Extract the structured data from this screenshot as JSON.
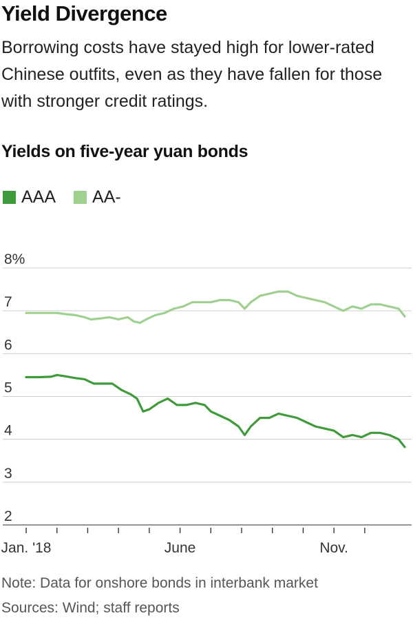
{
  "header": {
    "title": "Yield Divergence",
    "subtitle": "Borrowing costs have stayed high for lower-rated Chinese outfits, even as they have fallen for those with stronger credit ratings."
  },
  "chart_heading": "Yields on five-year yuan bonds",
  "legend": [
    {
      "label": "AAA",
      "color": "#3f9a3b"
    },
    {
      "label": "AA-",
      "color": "#9ed08f"
    }
  ],
  "footer": {
    "note": "Note: Data for onshore bonds in interbank market",
    "source": "Sources: Wind; staff reports"
  },
  "chart_data": {
    "type": "line",
    "title": "Yields on five-year yuan bonds",
    "xlabel": "",
    "ylabel": "",
    "ylim": [
      2,
      8
    ],
    "yticks": [
      2,
      3,
      4,
      5,
      6,
      7,
      8
    ],
    "ytick_labels": [
      "2",
      "3",
      "4",
      "5",
      "6",
      "7",
      "8%"
    ],
    "xlim": [
      0,
      12.3
    ],
    "xticks": [
      0,
      1,
      2,
      3,
      4,
      5,
      6,
      7,
      8,
      9,
      10,
      11
    ],
    "xtick_labels": [
      "Jan. '18",
      "",
      "",
      "",
      "",
      "June",
      "",
      "",
      "",
      "",
      "Nov.",
      ""
    ],
    "grid": true,
    "legend_position": "top-left",
    "series": [
      {
        "name": "AAA",
        "color": "#3f9a3b",
        "x": [
          0,
          0.4,
          0.8,
          1.0,
          1.2,
          1.6,
          1.9,
          2.2,
          2.5,
          2.8,
          3.1,
          3.4,
          3.6,
          3.8,
          4.0,
          4.3,
          4.6,
          4.9,
          5.2,
          5.5,
          5.8,
          6.0,
          6.3,
          6.6,
          6.9,
          7.1,
          7.3,
          7.6,
          7.9,
          8.2,
          8.5,
          8.8,
          9.1,
          9.4,
          9.7,
          10.0,
          10.3,
          10.6,
          10.9,
          11.2,
          11.5,
          11.8,
          12.1,
          12.3
        ],
        "y": [
          5.45,
          5.45,
          5.46,
          5.5,
          5.48,
          5.43,
          5.4,
          5.3,
          5.3,
          5.3,
          5.15,
          5.05,
          4.95,
          4.65,
          4.7,
          4.85,
          4.95,
          4.8,
          4.8,
          4.85,
          4.8,
          4.65,
          4.55,
          4.45,
          4.3,
          4.1,
          4.3,
          4.5,
          4.5,
          4.6,
          4.55,
          4.5,
          4.4,
          4.3,
          4.25,
          4.2,
          4.05,
          4.1,
          4.05,
          4.15,
          4.15,
          4.1,
          4.0,
          3.82
        ]
      },
      {
        "name": "AA-",
        "color": "#9ed08f",
        "x": [
          0,
          0.4,
          0.8,
          1.0,
          1.3,
          1.6,
          1.9,
          2.1,
          2.4,
          2.7,
          3.0,
          3.3,
          3.5,
          3.7,
          3.9,
          4.2,
          4.5,
          4.8,
          5.1,
          5.4,
          5.7,
          6.0,
          6.3,
          6.6,
          6.9,
          7.1,
          7.3,
          7.6,
          7.9,
          8.2,
          8.5,
          8.8,
          9.1,
          9.4,
          9.7,
          10.0,
          10.3,
          10.6,
          10.9,
          11.2,
          11.5,
          11.8,
          12.1,
          12.3
        ],
        "y": [
          6.95,
          6.95,
          6.95,
          6.95,
          6.92,
          6.9,
          6.85,
          6.8,
          6.82,
          6.85,
          6.8,
          6.85,
          6.75,
          6.72,
          6.8,
          6.9,
          6.95,
          7.05,
          7.1,
          7.2,
          7.2,
          7.2,
          7.25,
          7.25,
          7.2,
          7.05,
          7.2,
          7.35,
          7.4,
          7.45,
          7.45,
          7.35,
          7.3,
          7.25,
          7.2,
          7.1,
          7.0,
          7.1,
          7.05,
          7.15,
          7.15,
          7.1,
          7.05,
          6.87
        ]
      }
    ]
  }
}
